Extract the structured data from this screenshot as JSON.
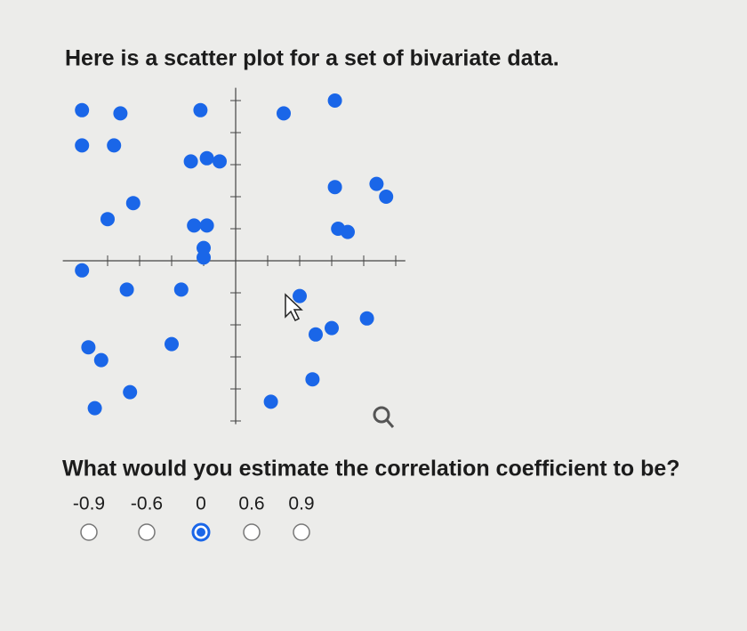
{
  "question": "Here is a scatter plot for a set of bivariate data.",
  "chart_data": {
    "type": "scatter",
    "color": "#1a66e8",
    "x": [
      -4.8,
      -3.6,
      -1.1,
      1.5,
      3.1,
      -4.8,
      -3.8,
      -1.4,
      -0.9,
      -0.5,
      3.1,
      4.4,
      4.7,
      -3.2,
      -4.0,
      -1.3,
      -0.9,
      3.2,
      3.5,
      -1.0,
      -1.0,
      -4.8,
      -3.4,
      -1.7,
      2.0,
      2.5,
      3.0,
      4.1,
      -4.6,
      -4.2,
      -2.0,
      2.4,
      -3.3,
      -4.4,
      1.1
    ],
    "y": [
      4.7,
      4.6,
      4.7,
      4.6,
      5.0,
      3.6,
      3.6,
      3.1,
      3.2,
      3.1,
      2.3,
      2.4,
      2.0,
      1.8,
      1.3,
      1.1,
      1.1,
      1.0,
      0.9,
      0.4,
      0.1,
      -0.3,
      -0.9,
      -0.9,
      -1.1,
      -2.3,
      -2.1,
      -1.8,
      -2.7,
      -3.1,
      -2.6,
      -3.7,
      -4.1,
      -4.6,
      -4.4
    ],
    "xlim": [
      -5.4,
      5.3
    ],
    "ylim": [
      -5.1,
      5.4
    ],
    "xticks": [
      -4,
      -3,
      -2,
      -1,
      0,
      1,
      2,
      3,
      4,
      5
    ],
    "yticks": [
      -5,
      -4,
      -3,
      -2,
      -1,
      0,
      1,
      2,
      3,
      4,
      5
    ]
  },
  "prompt": "What would you estimate the correlation coefficient to be?",
  "options": [
    "-0.9",
    "-0.6",
    "0",
    "0.6",
    "0.9"
  ],
  "selected_option": 2
}
